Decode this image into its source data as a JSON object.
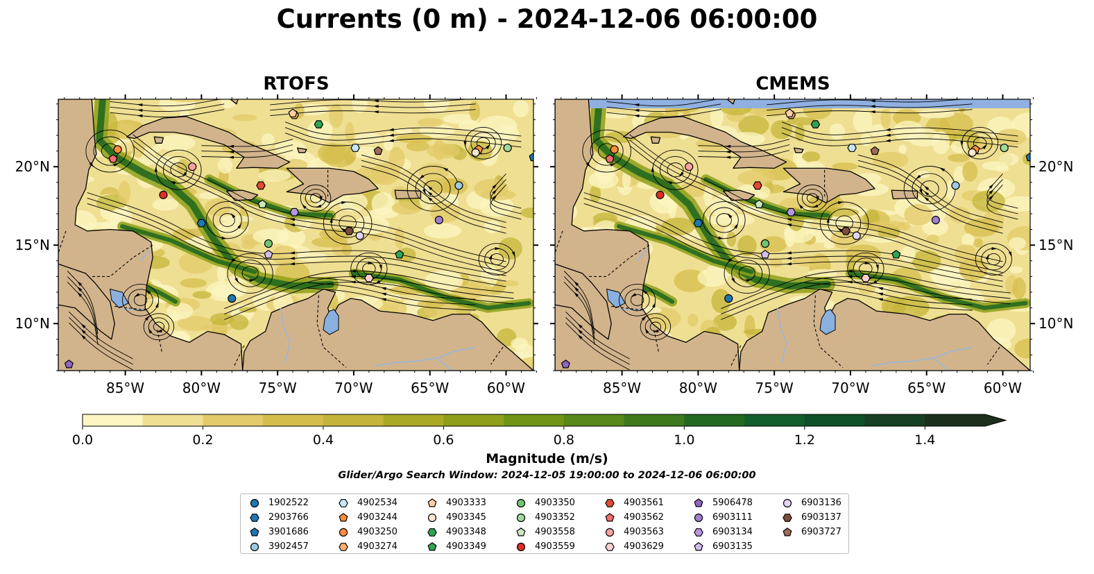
{
  "title": "Currents (0 m) - 2024-12-06 06:00:00",
  "panels": [
    {
      "name": "RTOFS"
    },
    {
      "name": "CMEMS"
    }
  ],
  "map": {
    "lon_range": [
      -89.4,
      -58.2
    ],
    "lat_range": [
      7.0,
      24.3
    ],
    "lon_ticks": [
      "85°W",
      "80°W",
      "75°W",
      "70°W",
      "65°W",
      "60°W"
    ],
    "lat_ticks": [
      "10°N",
      "15°N",
      "20°N"
    ],
    "land_color": "#d2b48c",
    "water_feature_color": "#8ab0e0"
  },
  "colorbar": {
    "label": "Magnitude (m/s)",
    "range": [
      0.0,
      1.5
    ],
    "extend": "max",
    "ticks": [
      "0.0",
      "0.2",
      "0.4",
      "0.6",
      "0.8",
      "1.0",
      "1.2",
      "1.4"
    ],
    "colors": [
      "#fcf6c2",
      "#efdf92",
      "#e3cb6a",
      "#d5bd4c",
      "#c4b53a",
      "#a9a925",
      "#8ea01a",
      "#709515",
      "#588817",
      "#3e7a1c",
      "#23691f",
      "#125e2a",
      "#0d4f26",
      "#173f22",
      "#1c2e1c"
    ]
  },
  "search_window": "Glider/Argo Search Window: 2024-12-05 19:00:00 to 2024-12-06 06:00:00",
  "chart_data": {
    "type": "map",
    "title": "Currents (0 m) - 2024-12-06 06:00:00",
    "panels": [
      "RTOFS",
      "CMEMS"
    ],
    "variable": "Magnitude (m/s)",
    "platforms": [
      {
        "id": "1902522",
        "marker": "circle",
        "color": "#1f77b4",
        "lon": -78.0,
        "lat": 11.6
      },
      {
        "id": "2903766",
        "marker": "hexagon",
        "color": "#1f77b4",
        "lon": -80.0,
        "lat": 16.4
      },
      {
        "id": "3901686",
        "marker": "pentagon",
        "color": "#1f77b4",
        "lon": -58.2,
        "lat": 20.6
      },
      {
        "id": "3902457",
        "marker": "circle",
        "color": "#9ecae1",
        "lon": -63.1,
        "lat": 18.8
      },
      {
        "id": "4902534",
        "marker": "hexagon",
        "color": "#c6e7f7",
        "lon": -69.9,
        "lat": 21.2
      },
      {
        "id": "4903244",
        "marker": "pentagon",
        "color": "#fd8d3c",
        "lon": -61.8,
        "lat": 21.1
      },
      {
        "id": "4903250",
        "marker": "circle",
        "color": "#fd8d3c",
        "lon": -85.5,
        "lat": 21.1
      },
      {
        "id": "4903274",
        "marker": "hexagon",
        "color": "#fdae6b",
        "lon": -73.9,
        "lat": 23.3
      },
      {
        "id": "4903333",
        "marker": "pentagon",
        "color": "#fdd0a2",
        "lon": -74.0,
        "lat": 23.4
      },
      {
        "id": "4903345",
        "marker": "circle",
        "color": "#fee6ce",
        "lon": -62.0,
        "lat": 20.9
      },
      {
        "id": "4903348",
        "marker": "hexagon",
        "color": "#31a354",
        "lon": -72.3,
        "lat": 22.7
      },
      {
        "id": "4903349",
        "marker": "pentagon",
        "color": "#31a354",
        "lon": -67.0,
        "lat": 14.4
      },
      {
        "id": "4903350",
        "marker": "circle",
        "color": "#74c476",
        "lon": -75.6,
        "lat": 15.1
      },
      {
        "id": "4903352",
        "marker": "circle",
        "color": "#a1d99b",
        "lon": -59.9,
        "lat": 21.2
      },
      {
        "id": "4903558",
        "marker": "pentagon",
        "color": "#c7e9c0",
        "lon": -76.0,
        "lat": 17.6
      },
      {
        "id": "4903559",
        "marker": "circle",
        "color": "#de2d26",
        "lon": -82.5,
        "lat": 18.2
      },
      {
        "id": "4903561",
        "marker": "hexagon",
        "color": "#e34a33",
        "lon": -76.1,
        "lat": 18.8
      },
      {
        "id": "4903562",
        "marker": "pentagon",
        "color": "#f16d6d",
        "lon": -85.8,
        "lat": 20.5
      },
      {
        "id": "4903563",
        "marker": "circle",
        "color": "#f7a1a1",
        "lon": -80.6,
        "lat": 20.0
      },
      {
        "id": "4903629",
        "marker": "hexagon",
        "color": "#fbd0d0",
        "lon": -69.0,
        "lat": 12.9
      },
      {
        "id": "5906478",
        "marker": "pentagon",
        "color": "#8e66c2",
        "lon": -88.7,
        "lat": 7.4
      },
      {
        "id": "6903111",
        "marker": "circle",
        "color": "#a07fd0",
        "lon": -64.4,
        "lat": 16.6
      },
      {
        "id": "6903134",
        "marker": "hexagon",
        "color": "#b698de",
        "lon": -73.9,
        "lat": 17.1
      },
      {
        "id": "6903135",
        "marker": "pentagon",
        "color": "#d2bdef",
        "lon": -75.6,
        "lat": 14.4
      },
      {
        "id": "6903136",
        "marker": "circle",
        "color": "#e3d5f5",
        "lon": -69.6,
        "lat": 15.6
      },
      {
        "id": "6903137",
        "marker": "hexagon",
        "color": "#7a4e3c",
        "lon": -70.3,
        "lat": 15.9
      },
      {
        "id": "6903727",
        "marker": "pentagon",
        "color": "#9c6b59",
        "lon": -68.4,
        "lat": 21.0
      }
    ]
  },
  "legend_columns": [
    [
      "1902522",
      "2903766",
      "3901686",
      "3902457"
    ],
    [
      "4902534",
      "4903244",
      "4903250",
      "4903274"
    ],
    [
      "4903333",
      "4903345",
      "4903348",
      "4903349"
    ],
    [
      "4903350",
      "4903352",
      "4903558",
      "4903559"
    ],
    [
      "4903561",
      "4903562",
      "4903563",
      "4903629"
    ],
    [
      "5906478",
      "6903111",
      "6903134",
      "6903135"
    ],
    [
      "6903136",
      "6903137",
      "6903727"
    ]
  ]
}
